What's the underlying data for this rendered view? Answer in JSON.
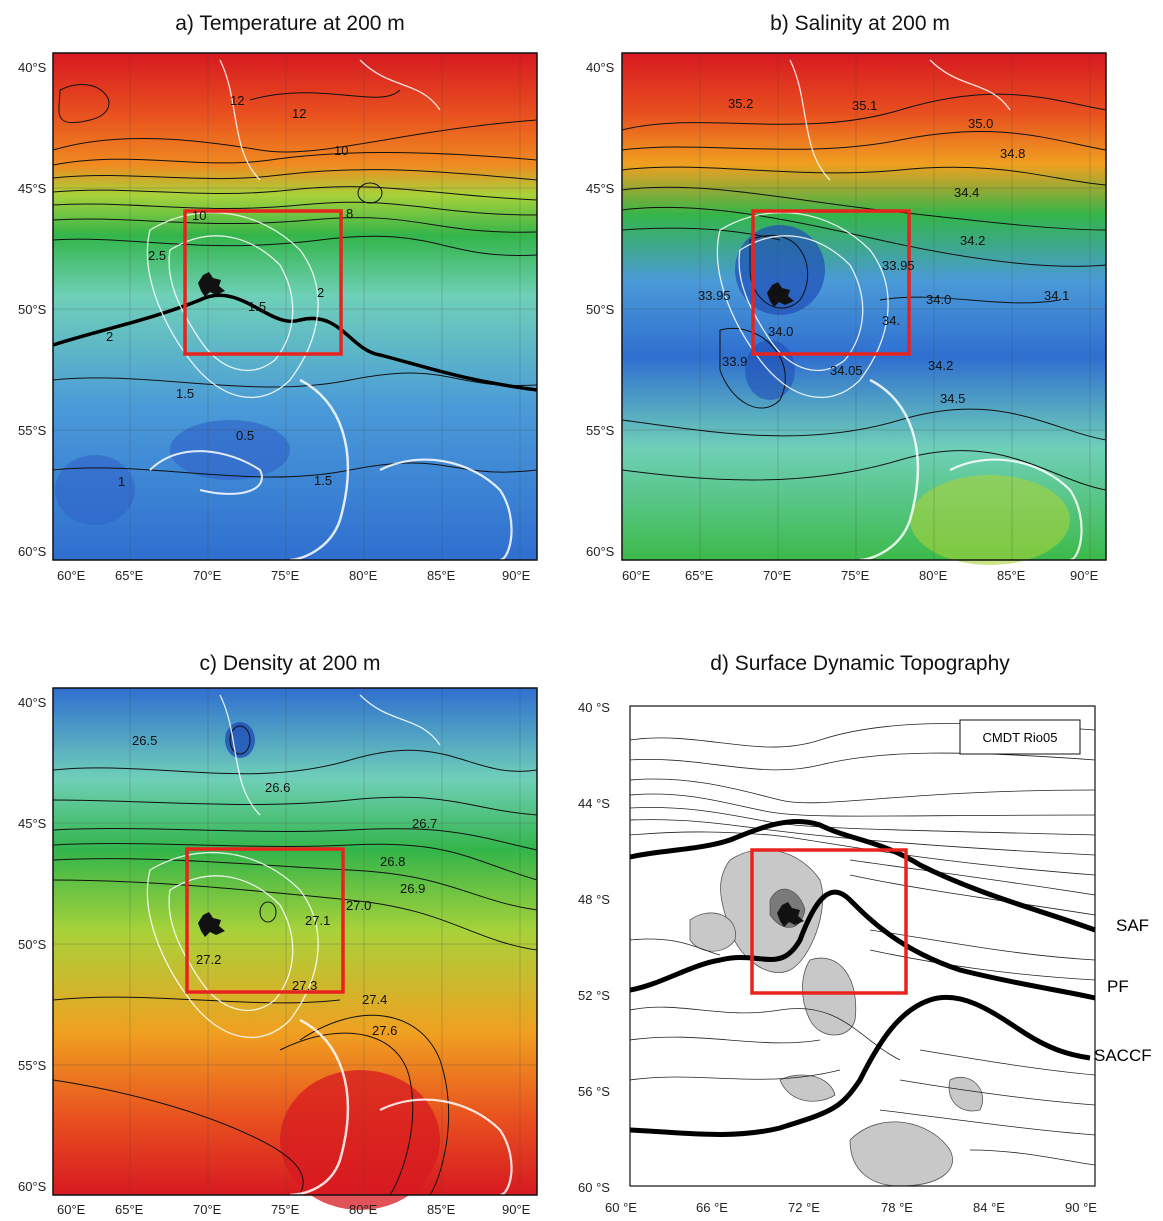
{
  "panels": [
    {
      "id": "a",
      "title": "a) Temperature at 200 m",
      "colors": [
        "#d71920",
        "#e8501f",
        "#f08a20",
        "#a8d23a",
        "#33b54a",
        "#6fd0b8",
        "#4a9ad8",
        "#2f6fd0"
      ],
      "xticks": [
        "60°E",
        "65°E",
        "70°E",
        "75°E",
        "80°E",
        "85°E",
        "90°E"
      ],
      "yticks": [
        "40°S",
        "45°S",
        "50°S",
        "55°S",
        "60°S"
      ],
      "contour_labels": [
        "12",
        "12",
        "10",
        "8",
        "10",
        "2.5",
        "1.5",
        "2",
        "2",
        "1.5",
        "0.5",
        "1",
        "1.5",
        "1"
      ]
    },
    {
      "id": "b",
      "title": "b) Salinity at 200 m",
      "colors": [
        "#d71920",
        "#e8501f",
        "#f0a020",
        "#33b54a",
        "#4a9ad8",
        "#2f6fd0",
        "#3cba4a"
      ],
      "xticks": [
        "60°E",
        "65°E",
        "70°E",
        "75°E",
        "80°E",
        "85°E",
        "90°E"
      ],
      "yticks": [
        "40°S",
        "45°S",
        "50°S",
        "55°S",
        "60°S"
      ],
      "contour_labels": [
        "35.2",
        "35.1",
        "35.0",
        "34.8",
        "34.4",
        "34.2",
        "33.95",
        "33.95",
        "34.0",
        "34.1",
        "34.0",
        "34.",
        "33.9",
        "34.05",
        "34.2",
        "34.5"
      ]
    },
    {
      "id": "c",
      "title": "c) Density at 200 m",
      "colors": [
        "#2f6fd0",
        "#6fd0b8",
        "#33b54a",
        "#a8d23a",
        "#f0a020",
        "#e8501f",
        "#d71920"
      ],
      "xticks": [
        "60°E",
        "65°E",
        "70°E",
        "75°E",
        "80°E",
        "85°E",
        "90°E"
      ],
      "yticks": [
        "40°S",
        "45°S",
        "50°S",
        "55°S",
        "60°S"
      ],
      "contour_labels": [
        "26.5",
        "26.6",
        "26.7",
        "26.8",
        "26.9",
        "27.0",
        "27.1",
        "27.2",
        "27.3",
        "27.4",
        "27.6"
      ]
    },
    {
      "id": "d",
      "title": "d) Surface Dynamic Topography",
      "legend_box": "CMDT Rio05",
      "xticks": [
        "60 °E",
        "66 °E",
        "72 °E",
        "78 °E",
        "84 °E",
        "90 °E"
      ],
      "yticks": [
        "40 °S",
        "44 °S",
        "48 °S",
        "52 °S",
        "56 °S",
        "60 °S"
      ],
      "front_labels": [
        "SAF",
        "PF",
        "SACCF"
      ]
    }
  ]
}
